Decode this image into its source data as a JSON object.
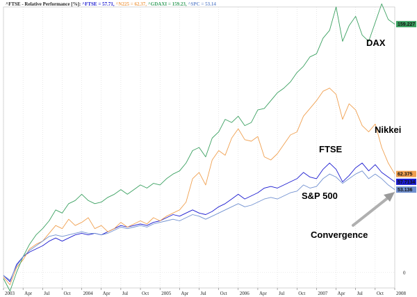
{
  "chart_data": {
    "type": "line",
    "title": {
      "prefix": "^FTSE - Relative Performance [%]: ",
      "items": [
        {
          "label": "^FTSE = 57.71,",
          "color": "#1a1ad0"
        },
        {
          "label": "^N225 = 62.37,",
          "color": "#f0a050"
        },
        {
          "label": "^GDAXI = 159.23,",
          "color": "#3aa060"
        },
        {
          "label": "^SPC = 53.14",
          "color": "#7090d0"
        }
      ]
    },
    "y_range": [
      -10,
      170
    ],
    "zero_label": "0",
    "x_labels": [
      "2003",
      "Apr",
      "Jul",
      "Oct",
      "2004",
      "Apr",
      "Jul",
      "Oct",
      "2005",
      "Apr",
      "Jul",
      "Oct",
      "2006",
      "Apr",
      "Jul",
      "Oct",
      "2007",
      "Apr",
      "Jul",
      "Oct",
      "2008"
    ],
    "x_range": [
      0,
      60
    ],
    "series": [
      {
        "name": "^FTSE",
        "color": "#1a1ad0",
        "last_value_label": "57.7134",
        "points": [
          [
            0,
            -2
          ],
          [
            1,
            -6
          ],
          [
            2,
            5
          ],
          [
            3,
            10
          ],
          [
            4,
            13
          ],
          [
            5,
            15
          ],
          [
            6,
            17
          ],
          [
            7,
            20
          ],
          [
            8,
            22
          ],
          [
            9,
            20
          ],
          [
            10,
            22
          ],
          [
            11,
            24
          ],
          [
            12,
            25
          ],
          [
            13,
            24
          ],
          [
            14,
            25
          ],
          [
            15,
            24
          ],
          [
            16,
            26
          ],
          [
            17,
            28
          ],
          [
            18,
            30
          ],
          [
            19,
            29
          ],
          [
            20,
            30
          ],
          [
            21,
            31
          ],
          [
            22,
            30
          ],
          [
            23,
            32
          ],
          [
            24,
            33
          ],
          [
            25,
            35
          ],
          [
            26,
            37
          ],
          [
            27,
            36
          ],
          [
            28,
            38
          ],
          [
            29,
            40
          ],
          [
            30,
            38
          ],
          [
            31,
            37
          ],
          [
            32,
            39
          ],
          [
            33,
            42
          ],
          [
            34,
            44
          ],
          [
            35,
            47
          ],
          [
            36,
            50
          ],
          [
            37,
            47
          ],
          [
            38,
            49
          ],
          [
            39,
            51
          ],
          [
            40,
            54
          ],
          [
            41,
            55
          ],
          [
            42,
            54
          ],
          [
            43,
            56
          ],
          [
            44,
            58
          ],
          [
            45,
            60
          ],
          [
            46,
            64
          ],
          [
            47,
            61
          ],
          [
            48,
            60
          ],
          [
            49,
            66
          ],
          [
            50,
            70
          ],
          [
            51,
            66
          ],
          [
            52,
            58
          ],
          [
            53,
            62
          ],
          [
            54,
            67
          ],
          [
            55,
            70
          ],
          [
            56,
            65
          ],
          [
            57,
            69
          ],
          [
            58,
            64
          ],
          [
            59,
            61
          ],
          [
            60,
            58
          ]
        ]
      },
      {
        "name": "^N225",
        "color": "#f0a050",
        "last_value_label": "62.375",
        "points": [
          [
            0,
            -3
          ],
          [
            1,
            -8
          ],
          [
            2,
            3
          ],
          [
            3,
            8
          ],
          [
            4,
            15
          ],
          [
            5,
            18
          ],
          [
            6,
            20
          ],
          [
            7,
            25
          ],
          [
            8,
            30
          ],
          [
            9,
            28
          ],
          [
            10,
            34
          ],
          [
            11,
            30
          ],
          [
            12,
            32
          ],
          [
            13,
            35
          ],
          [
            14,
            28
          ],
          [
            15,
            30
          ],
          [
            16,
            26
          ],
          [
            17,
            28
          ],
          [
            18,
            32
          ],
          [
            19,
            29
          ],
          [
            20,
            31
          ],
          [
            21,
            33
          ],
          [
            22,
            31
          ],
          [
            23,
            35
          ],
          [
            24,
            33
          ],
          [
            25,
            36
          ],
          [
            26,
            38
          ],
          [
            27,
            40
          ],
          [
            28,
            45
          ],
          [
            29,
            60
          ],
          [
            30,
            64
          ],
          [
            31,
            56
          ],
          [
            32,
            72
          ],
          [
            33,
            78
          ],
          [
            34,
            75
          ],
          [
            35,
            86
          ],
          [
            36,
            92
          ],
          [
            37,
            85
          ],
          [
            38,
            84
          ],
          [
            39,
            87
          ],
          [
            40,
            74
          ],
          [
            41,
            72
          ],
          [
            42,
            76
          ],
          [
            43,
            82
          ],
          [
            44,
            88
          ],
          [
            45,
            90
          ],
          [
            46,
            100
          ],
          [
            47,
            105
          ],
          [
            48,
            110
          ],
          [
            49,
            116
          ],
          [
            50,
            118
          ],
          [
            51,
            114
          ],
          [
            52,
            98
          ],
          [
            53,
            108
          ],
          [
            54,
            104
          ],
          [
            55,
            94
          ],
          [
            56,
            90
          ],
          [
            57,
            95
          ],
          [
            58,
            80
          ],
          [
            59,
            70
          ],
          [
            60,
            63
          ]
        ]
      },
      {
        "name": "^GDAXI",
        "color": "#3aa060",
        "last_value_label": "159.227",
        "points": [
          [
            0,
            -4
          ],
          [
            1,
            -12
          ],
          [
            2,
            0
          ],
          [
            3,
            10
          ],
          [
            4,
            18
          ],
          [
            5,
            24
          ],
          [
            6,
            28
          ],
          [
            7,
            33
          ],
          [
            8,
            40
          ],
          [
            9,
            38
          ],
          [
            10,
            44
          ],
          [
            11,
            46
          ],
          [
            12,
            50
          ],
          [
            13,
            46
          ],
          [
            14,
            44
          ],
          [
            15,
            45
          ],
          [
            16,
            48
          ],
          [
            17,
            50
          ],
          [
            18,
            53
          ],
          [
            19,
            50
          ],
          [
            20,
            53
          ],
          [
            21,
            56
          ],
          [
            22,
            54
          ],
          [
            23,
            57
          ],
          [
            24,
            56
          ],
          [
            25,
            60
          ],
          [
            26,
            63
          ],
          [
            27,
            65
          ],
          [
            28,
            70
          ],
          [
            29,
            78
          ],
          [
            30,
            80
          ],
          [
            31,
            74
          ],
          [
            32,
            86
          ],
          [
            33,
            90
          ],
          [
            34,
            98
          ],
          [
            35,
            96
          ],
          [
            36,
            100
          ],
          [
            37,
            94
          ],
          [
            38,
            96
          ],
          [
            39,
            104
          ],
          [
            40,
            105
          ],
          [
            41,
            110
          ],
          [
            42,
            115
          ],
          [
            43,
            118
          ],
          [
            44,
            122
          ],
          [
            45,
            128
          ],
          [
            46,
            132
          ],
          [
            47,
            138
          ],
          [
            48,
            140
          ],
          [
            49,
            150
          ],
          [
            50,
            155
          ],
          [
            51,
            170
          ],
          [
            52,
            148
          ],
          [
            53,
            158
          ],
          [
            54,
            164
          ],
          [
            55,
            152
          ],
          [
            56,
            148
          ],
          [
            57,
            160
          ],
          [
            58,
            172
          ],
          [
            59,
            162
          ],
          [
            60,
            159
          ]
        ]
      },
      {
        "name": "^SPC",
        "color": "#7090d0",
        "last_value_label": "53.136",
        "points": [
          [
            0,
            -2
          ],
          [
            1,
            -5
          ],
          [
            2,
            4
          ],
          [
            3,
            10
          ],
          [
            4,
            14
          ],
          [
            5,
            17
          ],
          [
            6,
            20
          ],
          [
            7,
            23
          ],
          [
            8,
            24
          ],
          [
            9,
            23
          ],
          [
            10,
            24
          ],
          [
            11,
            25
          ],
          [
            12,
            26
          ],
          [
            13,
            25
          ],
          [
            14,
            25
          ],
          [
            15,
            24
          ],
          [
            16,
            25
          ],
          [
            17,
            27
          ],
          [
            18,
            29
          ],
          [
            19,
            28
          ],
          [
            20,
            29
          ],
          [
            21,
            30
          ],
          [
            22,
            29
          ],
          [
            23,
            31
          ],
          [
            24,
            32
          ],
          [
            25,
            33
          ],
          [
            26,
            34
          ],
          [
            27,
            33
          ],
          [
            28,
            35
          ],
          [
            29,
            37
          ],
          [
            30,
            36
          ],
          [
            31,
            34
          ],
          [
            32,
            36
          ],
          [
            33,
            38
          ],
          [
            34,
            40
          ],
          [
            35,
            42
          ],
          [
            36,
            44
          ],
          [
            37,
            42
          ],
          [
            38,
            43
          ],
          [
            39,
            45
          ],
          [
            40,
            47
          ],
          [
            41,
            48
          ],
          [
            42,
            47
          ],
          [
            43,
            49
          ],
          [
            44,
            51
          ],
          [
            45,
            52
          ],
          [
            46,
            56
          ],
          [
            47,
            54
          ],
          [
            48,
            55
          ],
          [
            49,
            60
          ],
          [
            50,
            63
          ],
          [
            51,
            61
          ],
          [
            52,
            57
          ],
          [
            53,
            60
          ],
          [
            54,
            63
          ],
          [
            55,
            65
          ],
          [
            56,
            60
          ],
          [
            57,
            63
          ],
          [
            58,
            60
          ],
          [
            59,
            56
          ],
          [
            60,
            53
          ]
        ]
      }
    ],
    "annotations": [
      {
        "text": "DAX"
      },
      {
        "text": "Nikkei"
      },
      {
        "text": "FTSE"
      },
      {
        "text": "S&P 500"
      },
      {
        "text": "Convergence"
      }
    ]
  }
}
